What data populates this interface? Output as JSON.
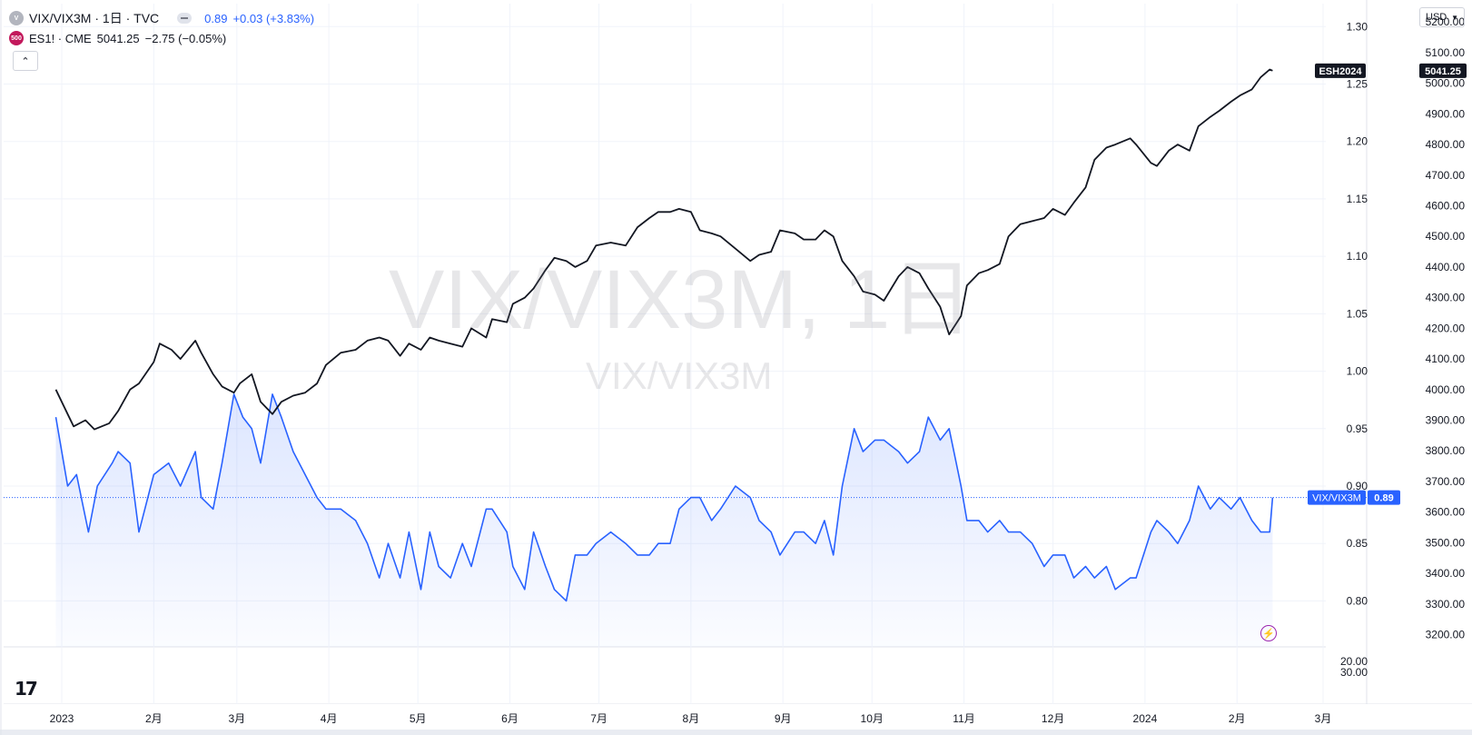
{
  "header": {
    "main_symbol": "VIX/VIX3M · 1日 · TVC",
    "main_price": "0.89",
    "main_change": "+0.03 (+3.83%)",
    "second_logo": "500",
    "second_symbol": "ES1! · CME",
    "second_price": "5041.25",
    "second_change": "−2.75 (−0.05%)",
    "collapse_icon": "chevron-up-icon",
    "currency": "USD"
  },
  "watermark": {
    "big": "VIX/VIX3M, 1日",
    "small": "VIX/VIX3M"
  },
  "colors": {
    "vix": "#2962ff",
    "es": "#131722",
    "badge_purple": "#9c27b0"
  },
  "axes": {
    "vix_ticks": [
      "1.30",
      "1.25",
      "1.20",
      "1.15",
      "1.10",
      "1.05",
      "1.00",
      "0.95",
      "0.90",
      "0.85",
      "0.80"
    ],
    "es_ticks": [
      "5200.00",
      "5100.00",
      "5000.00",
      "4900.00",
      "4800.00",
      "4700.00",
      "4600.00",
      "4500.00",
      "4400.00",
      "4300.00",
      "4200.00",
      "4100.00",
      "4000.00",
      "3900.00",
      "3800.00",
      "3700.00",
      "3600.00",
      "3500.00",
      "3400.00",
      "3300.00",
      "3200.00"
    ],
    "lower_ticks": [
      "20.00",
      "30.00"
    ],
    "x_ticks": [
      "2023",
      "2月",
      "3月",
      "4月",
      "5月",
      "6月",
      "7月",
      "8月",
      "9月",
      "10月",
      "11月",
      "12月",
      "2024",
      "2月",
      "3月"
    ]
  },
  "labels": {
    "es_name": "ESH2024",
    "es_last": "5041.25",
    "vix_name": "VIX/VIX3M",
    "vix_last": "0.89"
  },
  "chart_data": {
    "type": "line",
    "x_range": [
      "2023-01-01",
      "2024-02-13"
    ],
    "series": [
      {
        "name": "VIX/VIX3M",
        "axis": "left",
        "ylim": [
          0.76,
          1.32
        ],
        "points": [
          [
            "2022-12-30",
            0.96
          ],
          [
            "2023-01-03",
            0.9
          ],
          [
            "2023-01-06",
            0.91
          ],
          [
            "2023-01-10",
            0.86
          ],
          [
            "2023-01-13",
            0.9
          ],
          [
            "2023-01-18",
            0.92
          ],
          [
            "2023-01-20",
            0.93
          ],
          [
            "2023-01-24",
            0.92
          ],
          [
            "2023-01-27",
            0.86
          ],
          [
            "2023-02-01",
            0.91
          ],
          [
            "2023-02-06",
            0.92
          ],
          [
            "2023-02-10",
            0.9
          ],
          [
            "2023-02-15",
            0.93
          ],
          [
            "2023-02-17",
            0.89
          ],
          [
            "2023-02-21",
            0.88
          ],
          [
            "2023-02-24",
            0.92
          ],
          [
            "2023-02-28",
            0.98
          ],
          [
            "2023-03-03",
            0.96
          ],
          [
            "2023-03-06",
            0.95
          ],
          [
            "2023-03-09",
            0.92
          ],
          [
            "2023-03-13",
            0.98
          ],
          [
            "2023-03-16",
            0.96
          ],
          [
            "2023-03-20",
            0.93
          ],
          [
            "2023-03-24",
            0.91
          ],
          [
            "2023-03-28",
            0.89
          ],
          [
            "2023-03-31",
            0.88
          ],
          [
            "2023-04-05",
            0.88
          ],
          [
            "2023-04-10",
            0.87
          ],
          [
            "2023-04-14",
            0.85
          ],
          [
            "2023-04-18",
            0.82
          ],
          [
            "2023-04-21",
            0.85
          ],
          [
            "2023-04-25",
            0.82
          ],
          [
            "2023-04-28",
            0.86
          ],
          [
            "2023-05-02",
            0.81
          ],
          [
            "2023-05-05",
            0.86
          ],
          [
            "2023-05-08",
            0.83
          ],
          [
            "2023-05-12",
            0.82
          ],
          [
            "2023-05-16",
            0.85
          ],
          [
            "2023-05-19",
            0.83
          ],
          [
            "2023-05-24",
            0.88
          ],
          [
            "2023-05-26",
            0.88
          ],
          [
            "2023-05-31",
            0.86
          ],
          [
            "2023-06-02",
            0.83
          ],
          [
            "2023-06-06",
            0.81
          ],
          [
            "2023-06-09",
            0.86
          ],
          [
            "2023-06-13",
            0.83
          ],
          [
            "2023-06-16",
            0.81
          ],
          [
            "2023-06-20",
            0.8
          ],
          [
            "2023-06-23",
            0.84
          ],
          [
            "2023-06-27",
            0.84
          ],
          [
            "2023-06-30",
            0.85
          ],
          [
            "2023-07-05",
            0.86
          ],
          [
            "2023-07-10",
            0.85
          ],
          [
            "2023-07-14",
            0.84
          ],
          [
            "2023-07-18",
            0.84
          ],
          [
            "2023-07-21",
            0.85
          ],
          [
            "2023-07-25",
            0.85
          ],
          [
            "2023-07-28",
            0.88
          ],
          [
            "2023-08-01",
            0.89
          ],
          [
            "2023-08-04",
            0.89
          ],
          [
            "2023-08-08",
            0.87
          ],
          [
            "2023-08-11",
            0.88
          ],
          [
            "2023-08-16",
            0.9
          ],
          [
            "2023-08-21",
            0.89
          ],
          [
            "2023-08-24",
            0.87
          ],
          [
            "2023-08-28",
            0.86
          ],
          [
            "2023-08-31",
            0.84
          ],
          [
            "2023-09-05",
            0.86
          ],
          [
            "2023-09-08",
            0.86
          ],
          [
            "2023-09-12",
            0.85
          ],
          [
            "2023-09-15",
            0.87
          ],
          [
            "2023-09-18",
            0.84
          ],
          [
            "2023-09-21",
            0.9
          ],
          [
            "2023-09-25",
            0.95
          ],
          [
            "2023-09-28",
            0.93
          ],
          [
            "2023-10-02",
            0.94
          ],
          [
            "2023-10-05",
            0.94
          ],
          [
            "2023-10-10",
            0.93
          ],
          [
            "2023-10-13",
            0.92
          ],
          [
            "2023-10-17",
            0.93
          ],
          [
            "2023-10-20",
            0.96
          ],
          [
            "2023-10-24",
            0.94
          ],
          [
            "2023-10-27",
            0.95
          ],
          [
            "2023-10-31",
            0.9
          ],
          [
            "2023-11-02",
            0.87
          ],
          [
            "2023-11-06",
            0.87
          ],
          [
            "2023-11-09",
            0.86
          ],
          [
            "2023-11-13",
            0.87
          ],
          [
            "2023-11-16",
            0.86
          ],
          [
            "2023-11-20",
            0.86
          ],
          [
            "2023-11-24",
            0.85
          ],
          [
            "2023-11-28",
            0.83
          ],
          [
            "2023-12-01",
            0.84
          ],
          [
            "2023-12-05",
            0.84
          ],
          [
            "2023-12-08",
            0.82
          ],
          [
            "2023-12-12",
            0.83
          ],
          [
            "2023-12-15",
            0.82
          ],
          [
            "2023-12-19",
            0.83
          ],
          [
            "2023-12-22",
            0.81
          ],
          [
            "2023-12-27",
            0.82
          ],
          [
            "2023-12-29",
            0.82
          ],
          [
            "2024-01-03",
            0.86
          ],
          [
            "2024-01-05",
            0.87
          ],
          [
            "2024-01-09",
            0.86
          ],
          [
            "2024-01-12",
            0.85
          ],
          [
            "2024-01-16",
            0.87
          ],
          [
            "2024-01-19",
            0.9
          ],
          [
            "2024-01-23",
            0.88
          ],
          [
            "2024-01-26",
            0.89
          ],
          [
            "2024-01-30",
            0.88
          ],
          [
            "2024-02-02",
            0.89
          ],
          [
            "2024-02-06",
            0.87
          ],
          [
            "2024-02-09",
            0.86
          ],
          [
            "2024-02-12",
            0.86
          ],
          [
            "2024-02-13",
            0.89
          ]
        ]
      },
      {
        "name": "ESH2024",
        "axis": "right",
        "ylim": [
          3160,
          5260
        ],
        "points": [
          [
            "2022-12-30",
            4000
          ],
          [
            "2023-01-03",
            3920
          ],
          [
            "2023-01-05",
            3880
          ],
          [
            "2023-01-09",
            3900
          ],
          [
            "2023-01-12",
            3870
          ],
          [
            "2023-01-17",
            3890
          ],
          [
            "2023-01-20",
            3930
          ],
          [
            "2023-01-24",
            4000
          ],
          [
            "2023-01-27",
            4020
          ],
          [
            "2023-02-01",
            4090
          ],
          [
            "2023-02-03",
            4150
          ],
          [
            "2023-02-07",
            4130
          ],
          [
            "2023-02-10",
            4100
          ],
          [
            "2023-02-15",
            4160
          ],
          [
            "2023-02-17",
            4120
          ],
          [
            "2023-02-21",
            4050
          ],
          [
            "2023-02-24",
            4010
          ],
          [
            "2023-02-28",
            3990
          ],
          [
            "2023-03-02",
            4020
          ],
          [
            "2023-03-06",
            4050
          ],
          [
            "2023-03-09",
            3960
          ],
          [
            "2023-03-13",
            3920
          ],
          [
            "2023-03-16",
            3960
          ],
          [
            "2023-03-20",
            3980
          ],
          [
            "2023-03-24",
            3990
          ],
          [
            "2023-03-28",
            4020
          ],
          [
            "2023-03-31",
            4080
          ],
          [
            "2023-04-05",
            4120
          ],
          [
            "2023-04-10",
            4130
          ],
          [
            "2023-04-14",
            4160
          ],
          [
            "2023-04-18",
            4170
          ],
          [
            "2023-04-21",
            4160
          ],
          [
            "2023-04-25",
            4110
          ],
          [
            "2023-04-28",
            4150
          ],
          [
            "2023-05-02",
            4130
          ],
          [
            "2023-05-05",
            4170
          ],
          [
            "2023-05-08",
            4160
          ],
          [
            "2023-05-12",
            4150
          ],
          [
            "2023-05-16",
            4140
          ],
          [
            "2023-05-19",
            4200
          ],
          [
            "2023-05-24",
            4170
          ],
          [
            "2023-05-26",
            4230
          ],
          [
            "2023-05-31",
            4220
          ],
          [
            "2023-06-02",
            4280
          ],
          [
            "2023-06-06",
            4300
          ],
          [
            "2023-06-09",
            4330
          ],
          [
            "2023-06-13",
            4390
          ],
          [
            "2023-06-16",
            4430
          ],
          [
            "2023-06-20",
            4420
          ],
          [
            "2023-06-23",
            4400
          ],
          [
            "2023-06-27",
            4420
          ],
          [
            "2023-06-30",
            4470
          ],
          [
            "2023-07-05",
            4480
          ],
          [
            "2023-07-10",
            4470
          ],
          [
            "2023-07-14",
            4530
          ],
          [
            "2023-07-18",
            4560
          ],
          [
            "2023-07-21",
            4580
          ],
          [
            "2023-07-25",
            4580
          ],
          [
            "2023-07-28",
            4590
          ],
          [
            "2023-08-01",
            4580
          ],
          [
            "2023-08-04",
            4520
          ],
          [
            "2023-08-08",
            4510
          ],
          [
            "2023-08-11",
            4500
          ],
          [
            "2023-08-16",
            4460
          ],
          [
            "2023-08-21",
            4420
          ],
          [
            "2023-08-24",
            4440
          ],
          [
            "2023-08-28",
            4450
          ],
          [
            "2023-08-31",
            4520
          ],
          [
            "2023-09-05",
            4510
          ],
          [
            "2023-09-08",
            4490
          ],
          [
            "2023-09-12",
            4490
          ],
          [
            "2023-09-15",
            4520
          ],
          [
            "2023-09-18",
            4500
          ],
          [
            "2023-09-21",
            4420
          ],
          [
            "2023-09-25",
            4370
          ],
          [
            "2023-09-28",
            4320
          ],
          [
            "2023-10-02",
            4310
          ],
          [
            "2023-10-05",
            4290
          ],
          [
            "2023-10-10",
            4370
          ],
          [
            "2023-10-13",
            4400
          ],
          [
            "2023-10-17",
            4380
          ],
          [
            "2023-10-20",
            4330
          ],
          [
            "2023-10-24",
            4270
          ],
          [
            "2023-10-27",
            4180
          ],
          [
            "2023-10-31",
            4240
          ],
          [
            "2023-11-02",
            4340
          ],
          [
            "2023-11-06",
            4380
          ],
          [
            "2023-11-09",
            4390
          ],
          [
            "2023-11-13",
            4410
          ],
          [
            "2023-11-16",
            4500
          ],
          [
            "2023-11-20",
            4540
          ],
          [
            "2023-11-24",
            4550
          ],
          [
            "2023-11-28",
            4560
          ],
          [
            "2023-12-01",
            4590
          ],
          [
            "2023-12-05",
            4570
          ],
          [
            "2023-12-08",
            4610
          ],
          [
            "2023-12-12",
            4660
          ],
          [
            "2023-12-15",
            4750
          ],
          [
            "2023-12-19",
            4790
          ],
          [
            "2023-12-22",
            4800
          ],
          [
            "2023-12-27",
            4820
          ],
          [
            "2023-12-29",
            4800
          ],
          [
            "2024-01-03",
            4740
          ],
          [
            "2024-01-05",
            4730
          ],
          [
            "2024-01-09",
            4780
          ],
          [
            "2024-01-12",
            4800
          ],
          [
            "2024-01-16",
            4780
          ],
          [
            "2024-01-19",
            4860
          ],
          [
            "2024-01-23",
            4890
          ],
          [
            "2024-01-26",
            4910
          ],
          [
            "2024-01-30",
            4940
          ],
          [
            "2024-02-02",
            4960
          ],
          [
            "2024-02-06",
            4980
          ],
          [
            "2024-02-09",
            5020
          ],
          [
            "2024-02-12",
            5045
          ],
          [
            "2024-02-13",
            5041
          ]
        ]
      }
    ],
    "lower_pane_ticks": [
      20,
      30
    ],
    "grid": true,
    "legend": "top-left"
  }
}
